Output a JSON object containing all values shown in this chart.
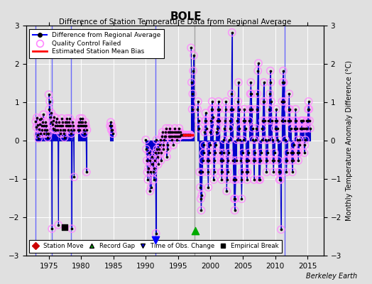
{
  "title": "BOLE",
  "subtitle": "Difference of Station Temperature Data from Regional Average",
  "ylabel_right": "Monthly Temperature Anomaly Difference (°C)",
  "xlim": [
    1971.5,
    2017.5
  ],
  "ylim": [
    -3,
    3
  ],
  "yticks": [
    -3,
    -2,
    -1,
    0,
    1,
    2,
    3
  ],
  "xticks": [
    1975,
    1980,
    1985,
    1990,
    1995,
    2000,
    2005,
    2010,
    2015
  ],
  "background_color": "#e0e0e0",
  "plot_bg_color": "#e0e0e0",
  "grid_color": "#ffffff",
  "line_color": "#0000cc",
  "dot_color": "#000000",
  "qc_edge_color": "#ff88ff",
  "bias_color": "#ff0000",
  "watermark": "Berkeley Earth",
  "bias_x1": 1995.7,
  "bias_x2": 1997.4,
  "bias_y": 0.15,
  "gray_vline_x": 1997.5,
  "blue_vlines": [
    1973.0,
    1975.5,
    1978.5,
    1991.5,
    2011.5
  ],
  "record_gap_x": 1997.7,
  "record_gap_y": -2.35,
  "time_obs_x": 1991.5,
  "time_obs_y": -2.6,
  "empirical_break_x": 1977.5,
  "empirical_break_y": -2.25,
  "data_segments": [
    {
      "x": [
        1973.0,
        1973.083,
        1973.167,
        1973.25,
        1973.333,
        1973.417,
        1973.5,
        1973.583,
        1973.667,
        1973.75,
        1973.833,
        1973.917
      ],
      "y": [
        0.5,
        0.35,
        0.6,
        0.4,
        0.15,
        0.05,
        0.3,
        0.55,
        0.42,
        0.18,
        0.58,
        0.38
      ]
    },
    {
      "x": [
        1974.0,
        1974.083,
        1974.167,
        1974.25,
        1974.333,
        1974.417,
        1974.5,
        1974.583,
        1974.667,
        1974.75,
        1974.833,
        1974.917
      ],
      "y": [
        0.28,
        0.48,
        0.68,
        0.38,
        0.18,
        0.28,
        0.48,
        0.38,
        0.18,
        0.28,
        0.08,
        0.18
      ]
    },
    {
      "x": [
        1975.0,
        1975.083,
        1975.167,
        1975.25,
        1975.333,
        1975.417,
        1975.5,
        1975.583,
        1975.667,
        1975.75,
        1975.833,
        1975.917
      ],
      "y": [
        1.2,
        0.82,
        1.02,
        0.62,
        0.48,
        0.72,
        -2.3,
        0.42,
        0.32,
        0.52,
        0.62,
        0.28
      ]
    },
    {
      "x": [
        1976.0,
        1976.083,
        1976.167,
        1976.25,
        1976.333,
        1976.417,
        1976.5,
        1976.583,
        1976.667,
        1976.75,
        1976.833,
        1976.917
      ],
      "y": [
        0.38,
        0.28,
        0.48,
        0.58,
        0.38,
        0.28,
        -2.2,
        0.48,
        0.38,
        0.28,
        0.18,
        0.38
      ]
    },
    {
      "x": [
        1977.0,
        1977.083,
        1977.167,
        1977.25,
        1977.333,
        1977.417,
        1977.5,
        1977.583,
        1977.667,
        1977.75,
        1977.833,
        1977.917
      ],
      "y": [
        0.58,
        0.48,
        0.38,
        0.28,
        0.18,
        0.08,
        0.28,
        0.48,
        0.38,
        0.48,
        0.58,
        0.38
      ]
    },
    {
      "x": [
        1978.0,
        1978.083,
        1978.167,
        1978.25,
        1978.333,
        1978.417,
        1978.5,
        1978.583,
        1978.667,
        1978.75,
        1978.833,
        1978.917
      ],
      "y": [
        0.28,
        0.38,
        0.48,
        0.58,
        0.38,
        0.28,
        0.18,
        -2.3,
        0.48,
        0.38,
        0.28,
        -0.95
      ]
    },
    {
      "x": [
        1979.5,
        1979.583,
        1979.667,
        1979.75,
        1979.833,
        1979.917
      ],
      "y": [
        0.28,
        0.38,
        0.48,
        0.28,
        0.58,
        0.38
      ]
    },
    {
      "x": [
        1980.0,
        1980.083,
        1980.167,
        1980.25,
        1980.333,
        1980.417,
        1980.5,
        1980.583,
        1980.667,
        1980.75,
        1980.833,
        1980.917
      ],
      "y": [
        0.48,
        0.38,
        0.58,
        0.48,
        0.38,
        0.28,
        0.18,
        0.38,
        0.48,
        0.38,
        -0.82,
        0.28
      ]
    },
    {
      "x": [
        1984.5,
        1984.583,
        1984.667,
        1984.75,
        1984.833,
        1984.917
      ],
      "y": [
        0.38,
        0.48,
        0.28,
        0.38,
        0.28,
        0.18
      ]
    },
    {
      "x": [
        1990.0,
        1990.083,
        1990.167,
        1990.25,
        1990.333,
        1990.417,
        1990.5,
        1990.583,
        1990.667,
        1990.75,
        1990.833,
        1990.917
      ],
      "y": [
        0.02,
        -0.22,
        -0.52,
        -0.82,
        -1.02,
        -0.72,
        -0.32,
        -0.52,
        -1.32,
        -0.82,
        -1.22,
        -0.62
      ]
    },
    {
      "x": [
        1991.0,
        1991.083,
        1991.167,
        1991.25,
        1991.333,
        1991.417,
        1991.5,
        1991.583,
        1991.667,
        1991.75,
        1991.833,
        1991.917
      ],
      "y": [
        -0.42,
        -0.62,
        -0.82,
        -1.02,
        -0.72,
        -0.52,
        -0.32,
        -2.42,
        0.02,
        -0.22,
        -0.42,
        -0.62
      ]
    },
    {
      "x": [
        1992.0,
        1992.083,
        1992.167,
        1992.25,
        1992.333,
        1992.417,
        1992.5,
        1992.583,
        1992.667,
        1992.75,
        1992.833,
        1992.917
      ],
      "y": [
        -0.32,
        -0.22,
        -0.12,
        0.02,
        -0.52,
        -0.32,
        0.12,
        0.22,
        -0.22,
        -0.12,
        0.02,
        0.12
      ]
    },
    {
      "x": [
        1993.0,
        1993.083,
        1993.167,
        1993.25,
        1993.333,
        1993.417,
        1993.5,
        1993.583,
        1993.667,
        1993.75,
        1993.833,
        1993.917
      ],
      "y": [
        0.12,
        0.22,
        0.32,
        -0.42,
        -0.22,
        -0.12,
        0.22,
        0.12,
        0.32,
        0.22,
        0.12,
        0.22
      ]
    },
    {
      "x": [
        1994.0,
        1994.083,
        1994.167,
        1994.25,
        1994.333,
        1994.417,
        1994.5,
        1994.583,
        1994.667,
        1994.75,
        1994.833,
        1994.917
      ],
      "y": [
        0.02,
        0.12,
        0.22,
        -0.12,
        0.12,
        0.22,
        0.32,
        0.12,
        0.22,
        0.12,
        0.02,
        0.22
      ]
    },
    {
      "x": [
        1995.0,
        1995.083,
        1995.167,
        1995.25,
        1995.333,
        1995.417,
        1995.5,
        1995.583,
        1995.667,
        1995.75,
        1995.833,
        1995.917
      ],
      "y": [
        0.12,
        0.22,
        0.32,
        0.12,
        0.22,
        0.15,
        0.15,
        0.15,
        0.15,
        0.15,
        0.15,
        0.15
      ]
    },
    {
      "x": [
        1996.0,
        1996.083,
        1996.167,
        1996.25,
        1996.333,
        1996.417,
        1996.5,
        1996.583,
        1996.667,
        1996.75,
        1996.833,
        1996.917
      ],
      "y": [
        0.15,
        0.15,
        0.15,
        0.15,
        0.15,
        0.15,
        0.15,
        0.15,
        0.15,
        0.15,
        0.15,
        0.15
      ]
    },
    {
      "x": [
        1997.0,
        1997.083,
        1997.167,
        1997.25,
        1997.333,
        1997.417
      ],
      "y": [
        2.42,
        1.52,
        0.82,
        1.22,
        1.82,
        2.22
      ]
    },
    {
      "x": [
        1998.0,
        1998.083,
        1998.167,
        1998.25,
        1998.333,
        1998.417,
        1998.5,
        1998.583,
        1998.667,
        1998.75,
        1998.833,
        1998.917
      ],
      "y": [
        0.82,
        1.02,
        0.52,
        0.32,
        -0.82,
        -1.22,
        -1.52,
        -1.82,
        -1.42,
        -0.82,
        -0.52,
        -0.32
      ]
    },
    {
      "x": [
        1999.0,
        1999.083,
        1999.167,
        1999.25,
        1999.333,
        1999.417,
        1999.5,
        1999.583,
        1999.667,
        1999.75,
        1999.833,
        1999.917
      ],
      "y": [
        -0.12,
        0.22,
        0.52,
        0.72,
        0.52,
        0.32,
        -0.52,
        -0.82,
        -1.22,
        -0.52,
        -0.32,
        -0.12
      ]
    },
    {
      "x": [
        2000.0,
        2000.083,
        2000.167,
        2000.25,
        2000.333,
        2000.417,
        2000.5,
        2000.583,
        2000.667,
        2000.75,
        2000.833,
        2000.917
      ],
      "y": [
        0.22,
        0.52,
        0.82,
        1.02,
        0.82,
        0.62,
        -1.02,
        -0.82,
        -0.52,
        -0.32,
        -0.12,
        0.22
      ]
    },
    {
      "x": [
        2001.0,
        2001.083,
        2001.167,
        2001.25,
        2001.333,
        2001.417,
        2001.5,
        2001.583,
        2001.667,
        2001.75,
        2001.833,
        2001.917
      ],
      "y": [
        0.32,
        0.52,
        0.82,
        1.02,
        0.82,
        0.52,
        -0.32,
        -0.52,
        -0.82,
        -1.02,
        -0.82,
        -0.52
      ]
    },
    {
      "x": [
        2002.0,
        2002.083,
        2002.167,
        2002.25,
        2002.333,
        2002.417,
        2002.5,
        2002.583,
        2002.667,
        2002.75,
        2002.833,
        2002.917
      ],
      "y": [
        -0.32,
        0.02,
        0.32,
        0.52,
        0.82,
        1.02,
        -1.32,
        -1.02,
        -0.82,
        -0.52,
        -0.32,
        0.02
      ]
    },
    {
      "x": [
        2003.0,
        2003.083,
        2003.167,
        2003.25,
        2003.333,
        2003.417,
        2003.5,
        2003.583,
        2003.667,
        2003.75,
        2003.833,
        2003.917
      ],
      "y": [
        0.32,
        0.52,
        0.82,
        1.22,
        2.82,
        0.82,
        -0.52,
        -1.02,
        -1.52,
        -1.82,
        -1.52,
        -1.02
      ]
    },
    {
      "x": [
        2004.0,
        2004.083,
        2004.167,
        2004.25,
        2004.333,
        2004.417,
        2004.5,
        2004.583,
        2004.667,
        2004.75,
        2004.833,
        2004.917
      ],
      "y": [
        -0.52,
        0.02,
        0.52,
        1.02,
        1.52,
        0.82,
        0.32,
        0.02,
        -0.52,
        -1.02,
        -1.52,
        -0.82
      ]
    },
    {
      "x": [
        2005.0,
        2005.083,
        2005.167,
        2005.25,
        2005.333,
        2005.417,
        2005.5,
        2005.583,
        2005.667,
        2005.75,
        2005.833,
        2005.917
      ],
      "y": [
        -0.32,
        0.02,
        0.52,
        0.82,
        0.52,
        0.32,
        -0.52,
        -0.82,
        -1.02,
        -0.82,
        -0.52,
        -0.32
      ]
    },
    {
      "x": [
        2006.0,
        2006.083,
        2006.167,
        2006.25,
        2006.333,
        2006.417,
        2006.5,
        2006.583,
        2006.667,
        2006.75,
        2006.833,
        2006.917
      ],
      "y": [
        0.52,
        0.82,
        1.22,
        1.52,
        1.22,
        0.82,
        0.32,
        0.02,
        -0.52,
        -1.02,
        -0.52,
        -0.32
      ]
    },
    {
      "x": [
        2007.0,
        2007.083,
        2007.167,
        2007.25,
        2007.333,
        2007.417,
        2007.5,
        2007.583,
        2007.667,
        2007.75,
        2007.833,
        2007.917
      ],
      "y": [
        0.02,
        0.32,
        0.82,
        1.22,
        1.82,
        2.02,
        -1.02,
        -0.52,
        -1.02,
        -0.52,
        -0.32,
        0.02
      ]
    },
    {
      "x": [
        2008.0,
        2008.083,
        2008.167,
        2008.25,
        2008.333,
        2008.417,
        2008.5,
        2008.583,
        2008.667,
        2008.75,
        2008.833,
        2008.917
      ],
      "y": [
        0.32,
        0.52,
        1.02,
        1.52,
        1.02,
        0.52,
        0.02,
        -0.52,
        -0.82,
        -0.52,
        -0.32,
        0.02
      ]
    },
    {
      "x": [
        2009.0,
        2009.083,
        2009.167,
        2009.25,
        2009.333,
        2009.417,
        2009.5,
        2009.583,
        2009.667,
        2009.75,
        2009.833,
        2009.917
      ],
      "y": [
        0.52,
        0.82,
        1.22,
        1.82,
        1.52,
        1.02,
        0.52,
        0.02,
        -0.52,
        -0.82,
        -0.52,
        -0.32
      ]
    },
    {
      "x": [
        2010.0,
        2010.083,
        2010.167,
        2010.25,
        2010.333,
        2010.417,
        2010.5,
        2010.583,
        2010.667,
        2010.75,
        2010.833,
        2010.917
      ],
      "y": [
        0.32,
        0.52,
        0.82,
        0.52,
        0.32,
        0.02,
        -0.52,
        -0.82,
        -1.02,
        -0.82,
        -1.02,
        -2.32
      ]
    },
    {
      "x": [
        2011.0,
        2011.083,
        2011.167,
        2011.25,
        2011.333,
        2011.417,
        2011.5,
        2011.583,
        2011.667,
        2011.75,
        2011.833,
        2011.917
      ],
      "y": [
        0.52,
        1.02,
        1.52,
        1.82,
        1.52,
        1.02,
        0.52,
        0.02,
        -0.52,
        -0.82,
        -0.52,
        -0.32
      ]
    },
    {
      "x": [
        2012.0,
        2012.083,
        2012.167,
        2012.25,
        2012.333,
        2012.417,
        2012.5,
        2012.583,
        2012.667,
        2012.75,
        2012.833,
        2012.917
      ],
      "y": [
        0.52,
        0.82,
        1.22,
        0.82,
        0.52,
        0.32,
        -0.32,
        -0.52,
        -0.82,
        -0.52,
        -0.32,
        -0.12
      ]
    },
    {
      "x": [
        2013.0,
        2013.083,
        2013.167,
        2013.25,
        2013.333,
        2013.417,
        2013.5,
        2013.583,
        2013.667,
        2013.75,
        2013.833,
        2013.917
      ],
      "y": [
        0.32,
        0.52,
        0.82,
        0.52,
        0.32,
        0.02,
        -0.32,
        -0.52,
        -0.32,
        -0.12,
        0.02,
        0.32
      ]
    },
    {
      "x": [
        2014.0,
        2014.083,
        2014.167,
        2014.25,
        2014.333,
        2014.417,
        2014.5,
        2014.583,
        2014.667,
        2014.75,
        2014.833,
        2014.917
      ],
      "y": [
        0.52,
        0.32,
        0.52,
        0.32,
        0.52,
        0.32,
        -0.32,
        -0.12,
        0.02,
        0.32,
        0.52,
        0.32
      ]
    },
    {
      "x": [
        2015.0,
        2015.083,
        2015.167,
        2015.25,
        2015.333,
        2015.417
      ],
      "y": [
        0.52,
        0.82,
        1.02,
        0.82,
        0.52,
        0.32
      ]
    }
  ]
}
